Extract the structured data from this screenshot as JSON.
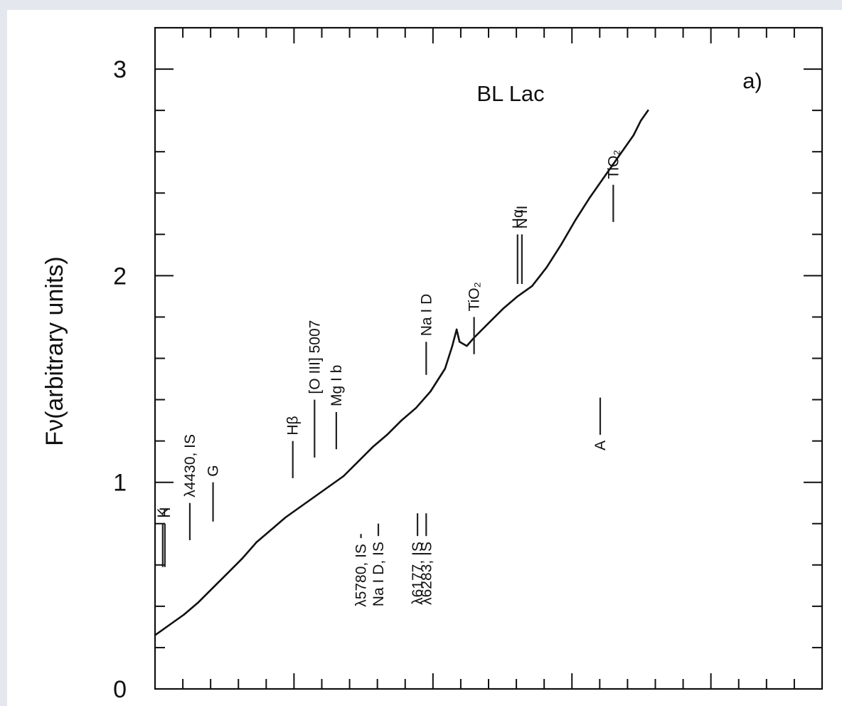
{
  "chart_data": {
    "type": "line",
    "title": "BL Lac",
    "panel_label": "a)",
    "ylabel": "Fν(arbitrary units)",
    "xlabel": "",
    "ylim": [
      0,
      3.2
    ],
    "yticks": [
      {
        "value": 0,
        "label": "0"
      },
      {
        "value": 1,
        "label": "1"
      },
      {
        "value": 2,
        "label": "2"
      },
      {
        "value": 3,
        "label": "3"
      }
    ],
    "xlim": [
      3800,
      8400
    ],
    "grid": false,
    "series": [
      {
        "color": "#111111",
        "points": [
          [
            3800,
            0.26
          ],
          [
            3900,
            0.31
          ],
          [
            4000,
            0.36
          ],
          [
            4100,
            0.42
          ],
          [
            4200,
            0.49
          ],
          [
            4300,
            0.56
          ],
          [
            4400,
            0.63
          ],
          [
            4500,
            0.71
          ],
          [
            4600,
            0.77
          ],
          [
            4700,
            0.83
          ],
          [
            4800,
            0.88
          ],
          [
            4900,
            0.93
          ],
          [
            5000,
            0.98
          ],
          [
            5100,
            1.03
          ],
          [
            5200,
            1.1
          ],
          [
            5300,
            1.17
          ],
          [
            5400,
            1.23
          ],
          [
            5500,
            1.3
          ],
          [
            5600,
            1.36
          ],
          [
            5700,
            1.44
          ],
          [
            5800,
            1.55
          ],
          [
            5850,
            1.66
          ],
          [
            5880,
            1.74
          ],
          [
            5900,
            1.68
          ],
          [
            5950,
            1.66
          ],
          [
            6000,
            1.7
          ],
          [
            6100,
            1.77
          ],
          [
            6200,
            1.84
          ],
          [
            6300,
            1.9
          ],
          [
            6400,
            1.95
          ],
          [
            6500,
            2.04
          ],
          [
            6600,
            2.15
          ],
          [
            6700,
            2.27
          ],
          [
            6800,
            2.38
          ],
          [
            6900,
            2.48
          ],
          [
            7000,
            2.58
          ],
          [
            7100,
            2.68
          ],
          [
            7150,
            2.75
          ],
          [
            7200,
            2.8
          ]
        ]
      }
    ],
    "annotations": [
      {
        "text": "K",
        "x": 3853,
        "y1": 0.59,
        "y2": 0.8,
        "side": "above"
      },
      {
        "text": "H",
        "x": 3868,
        "y1": 0.59,
        "y2": 0.8,
        "side": "above"
      },
      {
        "text": "λ4430, IS",
        "x": 4040,
        "y1": 0.72,
        "y2": 0.9,
        "side": "above"
      },
      {
        "text": "G",
        "x": 4200,
        "y1": 0.81,
        "y2": 1.0,
        "side": "above"
      },
      {
        "text": "Hβ",
        "x": 4750,
        "y1": 1.02,
        "y2": 1.2,
        "side": "above"
      },
      {
        "text": "[O III] 5007",
        "x": 4900,
        "y1": 1.12,
        "y2": 1.4,
        "side": "above"
      },
      {
        "text": "Mg I b",
        "x": 5050,
        "y1": 1.16,
        "y2": 1.34,
        "side": "above"
      },
      {
        "text": "λ5780, IS",
        "x": 5220,
        "y1": 0.73,
        "y2": 0.75,
        "side": "below"
      },
      {
        "text": "Na I D, IS",
        "x": 5340,
        "y1": 0.74,
        "y2": 0.8,
        "side": "below"
      },
      {
        "text": "Na I D",
        "x": 5670,
        "y1": 1.52,
        "y2": 1.68,
        "side": "above"
      },
      {
        "text": "λ6177, IS",
        "x": 5610,
        "y1": 0.74,
        "y2": 0.85,
        "side": "below"
      },
      {
        "text": "λ6283, IS",
        "x": 5670,
        "y1": 0.74,
        "y2": 0.85,
        "side": "below"
      },
      {
        "text": "TiO₂",
        "x": 6000,
        "y1": 1.62,
        "y2": 1.8,
        "side": "above"
      },
      {
        "text": "Hα",
        "x": 6300,
        "y1": 1.96,
        "y2": 2.2,
        "side": "above"
      },
      {
        "text": "N II",
        "x": 6330,
        "y1": 1.96,
        "y2": 2.2,
        "side": "above"
      },
      {
        "text": "A",
        "x": 6870,
        "y1": 1.23,
        "y2": 1.41,
        "side": "below"
      },
      {
        "text": "TiO₂",
        "x": 6960,
        "y1": 2.26,
        "y2": 2.44,
        "side": "above"
      }
    ]
  }
}
